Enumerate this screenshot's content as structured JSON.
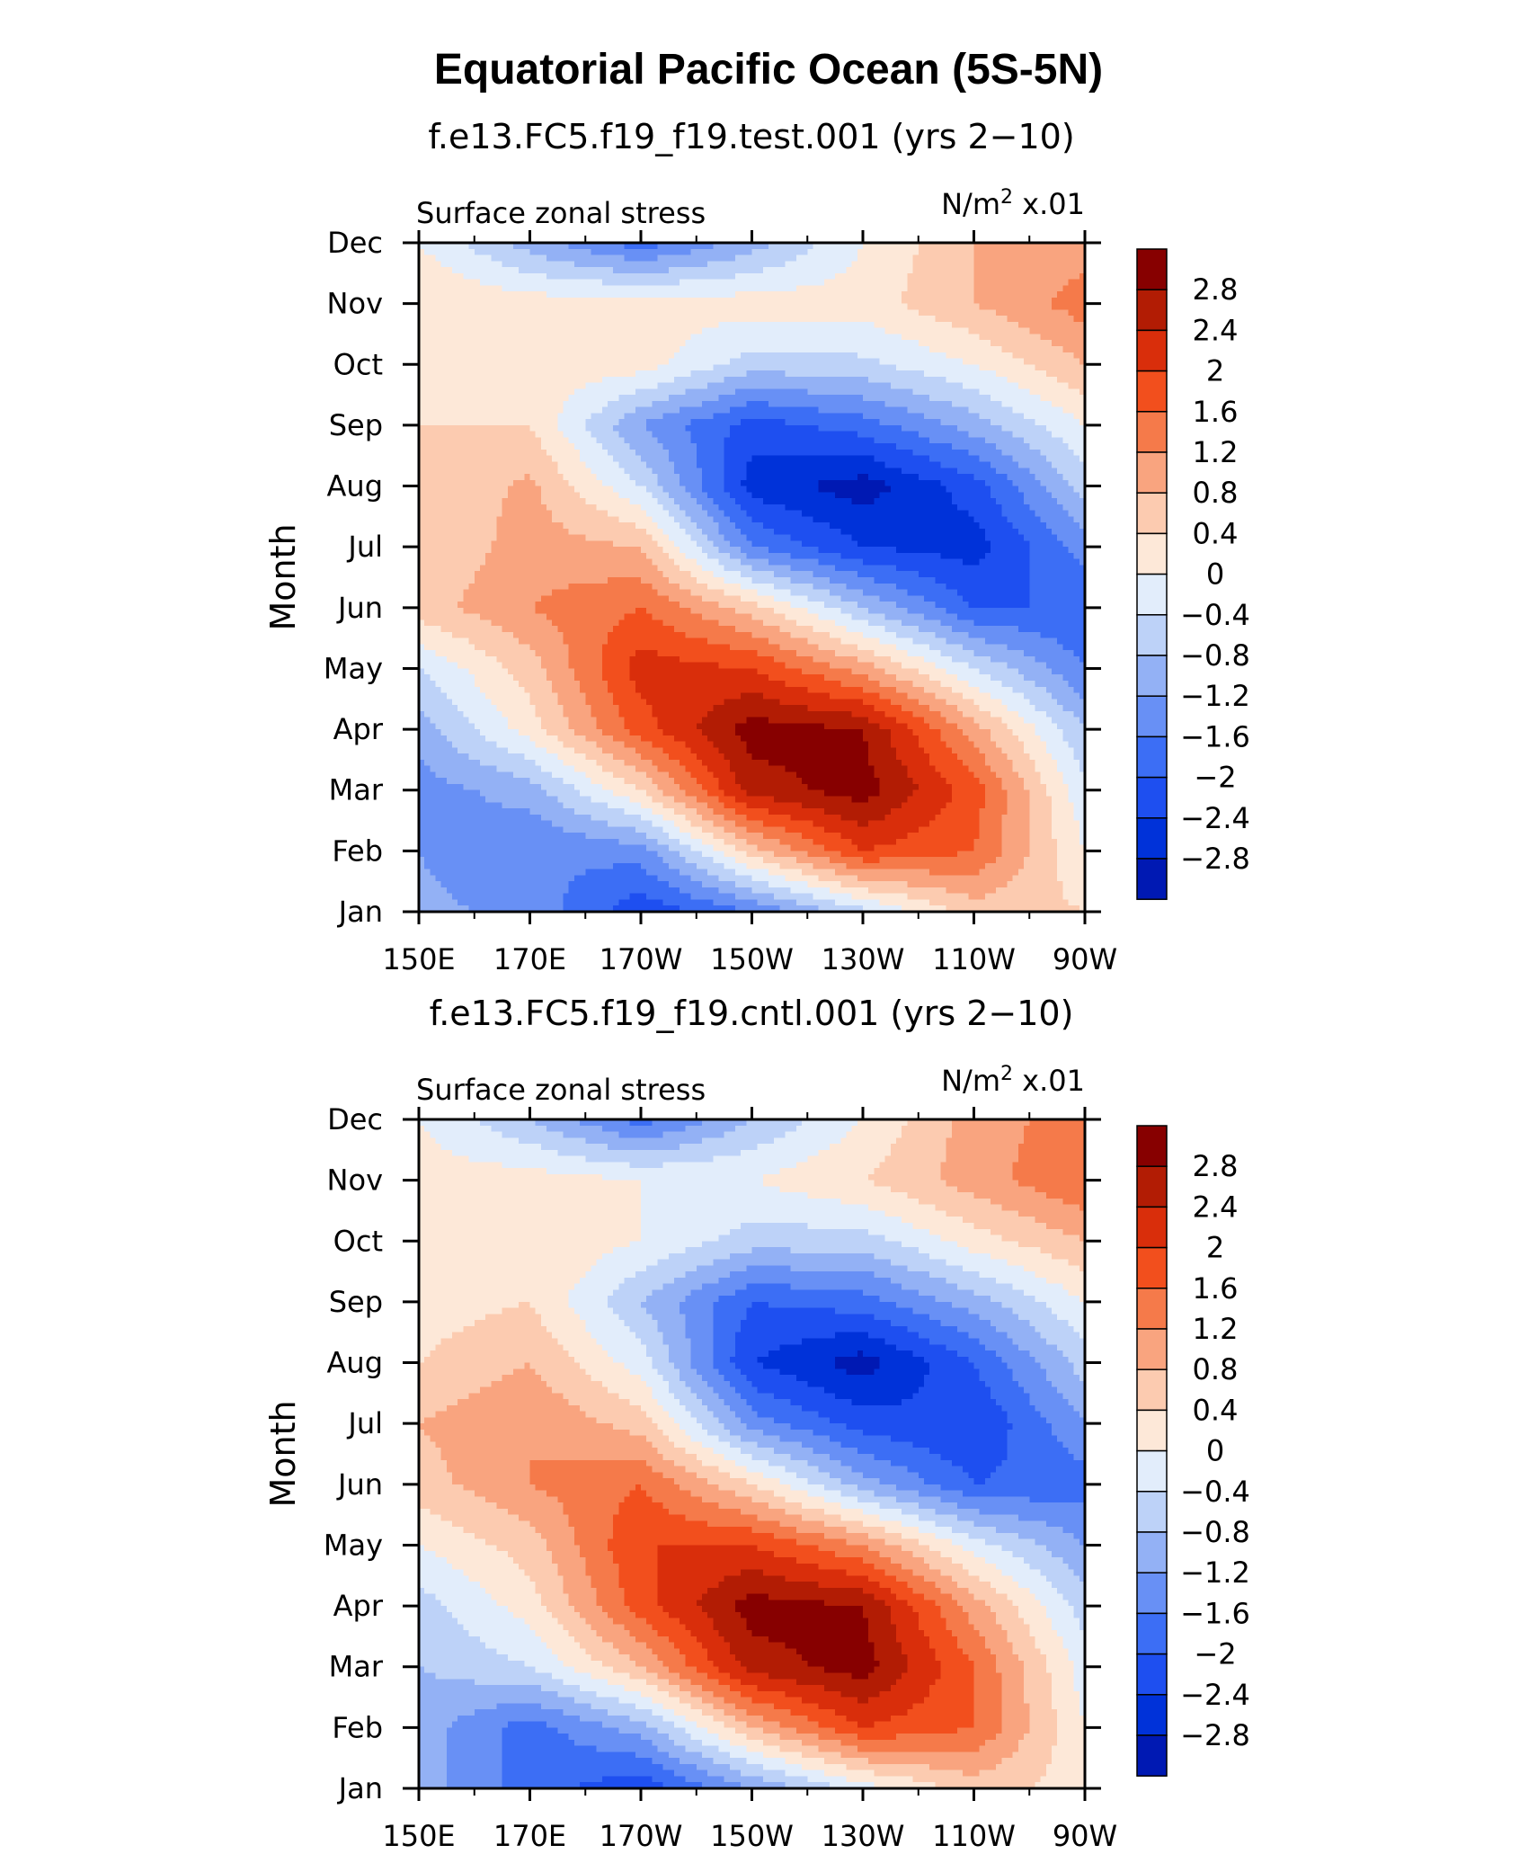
{
  "figure": {
    "title": "Equatorial Pacific Ocean (5S-5N)"
  },
  "chart_data": [
    {
      "type": "heatmap",
      "title": "f.e13.FC5.f19_f19.test.001 (yrs 2−10)",
      "left_string": "Surface zonal stress",
      "units_base": "N/m",
      "units_exp": "2",
      "units_scale": "x.01",
      "xlabel": "",
      "ylabel": "Month",
      "x_ticks": [
        "150E",
        "170E",
        "170W",
        "150W",
        "130W",
        "110W",
        "90W"
      ],
      "y_ticks": [
        "Jan",
        "Feb",
        "Mar",
        "Apr",
        "May",
        "Jun",
        "Jul",
        "Aug",
        "Sep",
        "Oct",
        "Nov",
        "Dec"
      ],
      "levels": [
        "2.8",
        "2.4",
        "2",
        "1.6",
        "1.2",
        "0.8",
        "0.4",
        "0",
        "−0.4",
        "−0.8",
        "−1.2",
        "−1.6",
        "−2",
        "−2.4",
        "−2.8"
      ],
      "x": [
        150,
        170,
        190,
        210,
        230,
        250,
        270
      ],
      "y": [
        "Jan",
        "Feb",
        "Mar",
        "Apr",
        "May",
        "Jun",
        "Jul",
        "Aug",
        "Sep",
        "Oct",
        "Nov",
        "Dec"
      ],
      "z": [
        [
          -1.1,
          -1.3,
          -2.3,
          -1.6,
          -0.5,
          0.6,
          0.4
        ],
        [
          -1.2,
          -1.6,
          -1.4,
          0.6,
          2.0,
          1.6,
          0.0
        ],
        [
          -1.4,
          -1.0,
          0.4,
          2.6,
          3.0,
          1.8,
          -0.3
        ],
        [
          -1.0,
          0.2,
          1.8,
          3.0,
          2.8,
          1.0,
          -0.8
        ],
        [
          -0.4,
          0.6,
          2.2,
          2.0,
          1.0,
          -0.4,
          -1.6
        ],
        [
          0.6,
          1.2,
          1.6,
          0.6,
          -0.8,
          -2.0,
          -2.0
        ],
        [
          0.4,
          1.0,
          0.8,
          -1.6,
          -2.4,
          -2.6,
          -1.4
        ],
        [
          0.4,
          0.9,
          -0.4,
          -2.6,
          -3.0,
          -2.2,
          -0.6
        ],
        [
          0.4,
          0.4,
          -1.2,
          -2.2,
          -1.8,
          -1.0,
          0.0
        ],
        [
          0.4,
          0.2,
          0.2,
          -0.6,
          -0.5,
          0.0,
          0.8
        ],
        [
          0.4,
          0.2,
          0.2,
          0.2,
          0.2,
          0.8,
          1.4
        ],
        [
          0.0,
          -1.0,
          -1.8,
          -1.0,
          0.0,
          0.8,
          1.0
        ]
      ]
    },
    {
      "type": "heatmap",
      "title": "f.e13.FC5.f19_f19.cntl.001 (yrs 2−10)",
      "left_string": "Surface zonal stress",
      "units_base": "N/m",
      "units_exp": "2",
      "units_scale": "x.01",
      "xlabel": "",
      "ylabel": "Month",
      "x_ticks": [
        "150E",
        "170E",
        "170W",
        "150W",
        "130W",
        "110W",
        "90W"
      ],
      "y_ticks": [
        "Jan",
        "Feb",
        "Mar",
        "Apr",
        "May",
        "Jun",
        "Jul",
        "Aug",
        "Sep",
        "Oct",
        "Nov",
        "Dec"
      ],
      "levels": [
        "2.8",
        "2.4",
        "2",
        "1.6",
        "1.2",
        "0.8",
        "0.4",
        "0",
        "−0.4",
        "−0.8",
        "−1.2",
        "−1.6",
        "−2",
        "−2.4",
        "−2.8"
      ],
      "x": [
        150,
        170,
        190,
        210,
        230,
        250,
        270
      ],
      "y": [
        "Jan",
        "Feb",
        "Mar",
        "Apr",
        "May",
        "Jun",
        "Jul",
        "Aug",
        "Sep",
        "Oct",
        "Nov",
        "Dec"
      ],
      "z": [
        [
          -1.0,
          -1.8,
          -2.3,
          -1.2,
          -0.2,
          0.6,
          0.2
        ],
        [
          -1.0,
          -1.8,
          -1.0,
          0.8,
          2.0,
          1.6,
          0.0
        ],
        [
          -0.8,
          -0.4,
          0.8,
          2.6,
          3.0,
          1.6,
          -0.2
        ],
        [
          -0.6,
          0.2,
          1.8,
          3.0,
          2.8,
          1.0,
          -0.6
        ],
        [
          0.0,
          0.6,
          2.0,
          2.0,
          1.2,
          -0.2,
          -1.2
        ],
        [
          0.6,
          1.2,
          1.6,
          0.4,
          -1.0,
          -2.0,
          -1.8
        ],
        [
          0.8,
          1.2,
          0.6,
          -1.4,
          -2.2,
          -2.4,
          -1.2
        ],
        [
          0.4,
          0.8,
          -0.2,
          -2.4,
          -3.0,
          -2.0,
          -0.6
        ],
        [
          0.2,
          0.4,
          -0.8,
          -2.0,
          -1.8,
          -1.0,
          0.0
        ],
        [
          0.4,
          0.4,
          0.0,
          -0.6,
          -0.6,
          0.2,
          0.8
        ],
        [
          0.2,
          0.2,
          0.0,
          0.0,
          0.4,
          1.0,
          1.6
        ],
        [
          0.0,
          -0.8,
          -1.8,
          -0.8,
          0.0,
          1.0,
          1.4
        ]
      ]
    }
  ],
  "colors": {
    "scale": [
      "#000080",
      "#0019b3",
      "#0032d9",
      "#1e4ff0",
      "#3c6ef5",
      "#6890f5",
      "#93b1f5",
      "#bdd2f8",
      "#e2edfb",
      "#fde8d8",
      "#fccbb0",
      "#f9a47f",
      "#f57a4a",
      "#f24f1d",
      "#d92e0b",
      "#b21c04",
      "#870000"
    ]
  }
}
